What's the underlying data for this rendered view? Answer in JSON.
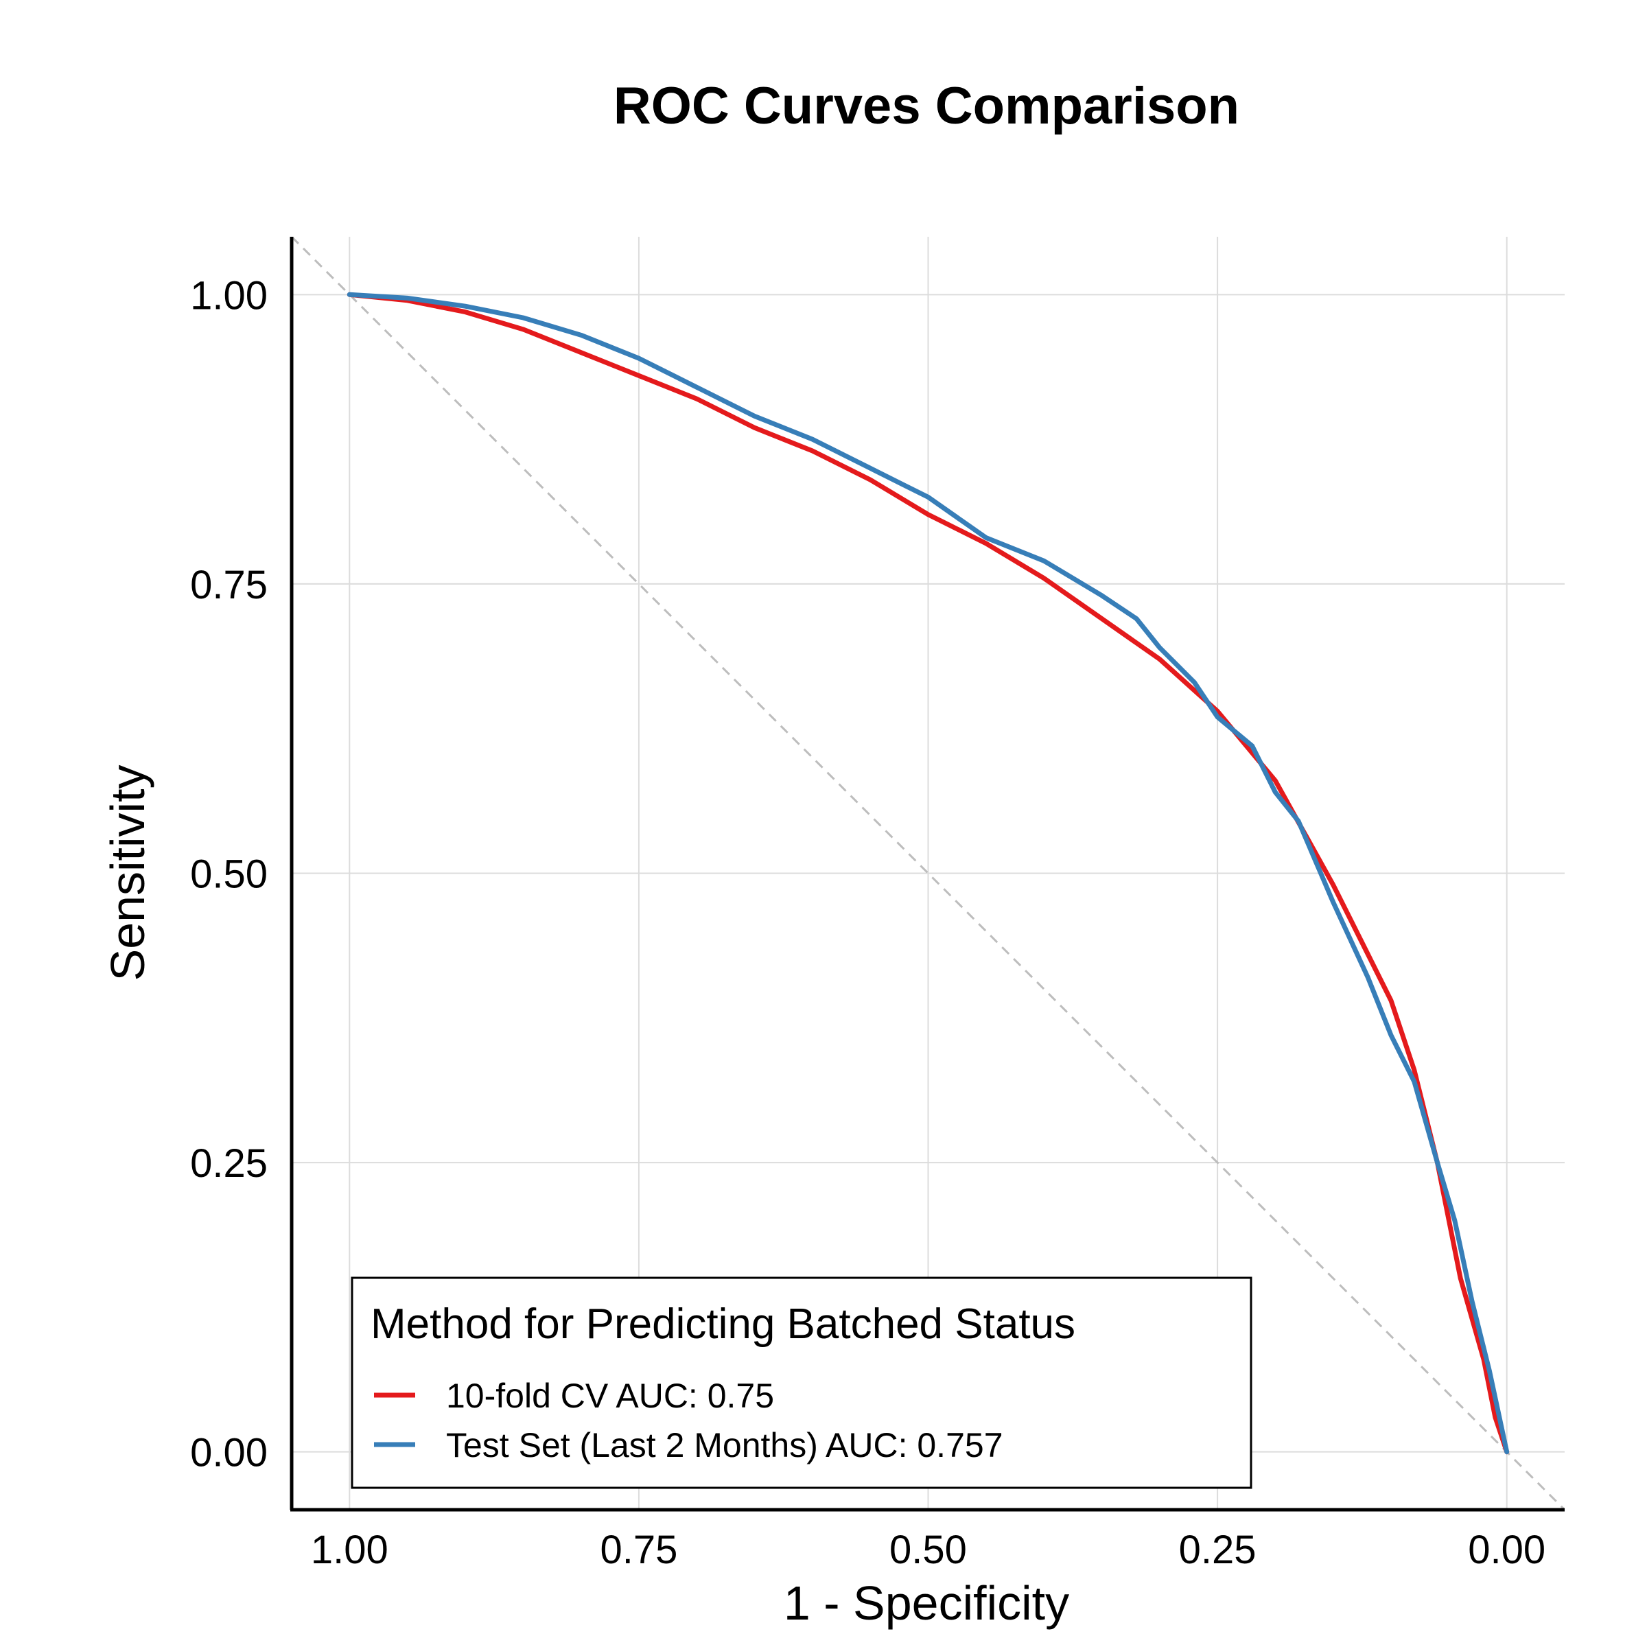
{
  "chart_data": {
    "type": "line",
    "title": "ROC Curves Comparison",
    "xlabel": "1 - Specificity",
    "ylabel": "Sensitivity",
    "x_reversed": true,
    "xlim": [
      1.05,
      -0.05
    ],
    "ylim": [
      -0.05,
      1.05
    ],
    "xticks": [
      "1.00",
      "0.75",
      "0.50",
      "0.25",
      "0.00"
    ],
    "xtick_values": [
      1.0,
      0.75,
      0.5,
      0.25,
      0.0
    ],
    "yticks": [
      "0.00",
      "0.25",
      "0.50",
      "0.75",
      "1.00"
    ],
    "ytick_values": [
      0.0,
      0.25,
      0.5,
      0.75,
      1.0
    ],
    "grid": true,
    "diagonal_reference": true,
    "legend": {
      "title": "Method for Predicting Batched Status",
      "position": "bottom-left"
    },
    "series": [
      {
        "name": "10-fold CV AUC: 0.75",
        "color": "#E41A1C",
        "x": [
          1.0,
          0.95,
          0.9,
          0.85,
          0.8,
          0.75,
          0.7,
          0.65,
          0.6,
          0.55,
          0.5,
          0.45,
          0.4,
          0.35,
          0.3,
          0.25,
          0.2,
          0.15,
          0.12,
          0.1,
          0.08,
          0.06,
          0.04,
          0.02,
          0.01,
          0.0
        ],
        "y": [
          1.0,
          0.995,
          0.985,
          0.97,
          0.95,
          0.93,
          0.91,
          0.885,
          0.865,
          0.84,
          0.81,
          0.785,
          0.755,
          0.72,
          0.685,
          0.64,
          0.58,
          0.49,
          0.43,
          0.39,
          0.33,
          0.25,
          0.15,
          0.08,
          0.03,
          0.0
        ]
      },
      {
        "name": "Test Set (Last 2 Months) AUC: 0.757",
        "color": "#377EB8",
        "x": [
          1.0,
          0.95,
          0.9,
          0.85,
          0.8,
          0.75,
          0.72,
          0.7,
          0.65,
          0.6,
          0.55,
          0.52,
          0.5,
          0.45,
          0.4,
          0.35,
          0.32,
          0.3,
          0.27,
          0.25,
          0.22,
          0.2,
          0.18,
          0.15,
          0.12,
          0.1,
          0.08,
          0.06,
          0.045,
          0.03,
          0.015,
          0.0
        ],
        "y": [
          1.0,
          0.997,
          0.99,
          0.98,
          0.965,
          0.945,
          0.93,
          0.92,
          0.895,
          0.875,
          0.85,
          0.835,
          0.825,
          0.79,
          0.77,
          0.74,
          0.72,
          0.695,
          0.665,
          0.635,
          0.61,
          0.57,
          0.545,
          0.475,
          0.41,
          0.36,
          0.32,
          0.25,
          0.2,
          0.13,
          0.07,
          0.0
        ]
      }
    ]
  }
}
